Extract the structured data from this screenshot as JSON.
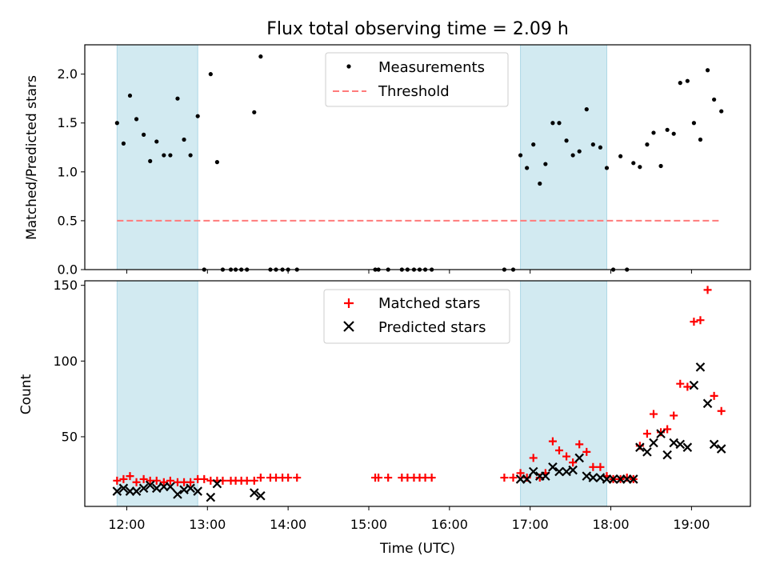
{
  "chart_data": {
    "type": "scatter",
    "title": "Flux total observing time = 2.09 h",
    "xlabel": "Time (UTC)",
    "xticks": [
      {
        "hour": 12,
        "label": "12:00"
      },
      {
        "hour": 13,
        "label": "13:00"
      },
      {
        "hour": 14,
        "label": "14:00"
      },
      {
        "hour": 15,
        "label": "15:00"
      },
      {
        "hour": 16,
        "label": "16:00"
      },
      {
        "hour": 17,
        "label": "17:00"
      },
      {
        "hour": 18,
        "label": "18:00"
      },
      {
        "hour": 19,
        "label": "19:00"
      }
    ],
    "xlim_hours": [
      11.48,
      19.73
    ],
    "shaded_intervals_hours": [
      [
        11.88,
        12.88
      ],
      [
        16.88,
        17.95
      ]
    ],
    "shade_color": "#add8e6",
    "panels": [
      {
        "id": "ratio",
        "ylabel": "Matched/Predicted stars",
        "ylim": [
          0,
          2.3
        ],
        "yticks": [
          {
            "v": 0.0,
            "label": "0.0"
          },
          {
            "v": 0.5,
            "label": "0.5"
          },
          {
            "v": 1.0,
            "label": "1.0"
          },
          {
            "v": 1.5,
            "label": "1.5"
          },
          {
            "v": 2.0,
            "label": "2.0"
          }
        ],
        "legend": {
          "position": "upper center"
        },
        "series": [
          {
            "name": "Measurements",
            "marker": "dot",
            "color": "#000000",
            "points": [
              [
                11.88,
                1.5
              ],
              [
                11.96,
                1.29
              ],
              [
                12.04,
                1.78
              ],
              [
                12.12,
                1.54
              ],
              [
                12.21,
                1.38
              ],
              [
                12.29,
                1.11
              ],
              [
                12.37,
                1.31
              ],
              [
                12.46,
                1.17
              ],
              [
                12.54,
                1.17
              ],
              [
                12.63,
                1.75
              ],
              [
                12.71,
                1.33
              ],
              [
                12.79,
                1.17
              ],
              [
                12.88,
                1.57
              ],
              [
                12.96,
                0
              ],
              [
                13.04,
                2.0
              ],
              [
                13.12,
                1.1
              ],
              [
                13.19,
                0
              ],
              [
                13.29,
                0
              ],
              [
                13.35,
                0
              ],
              [
                13.42,
                0
              ],
              [
                13.49,
                0
              ],
              [
                13.58,
                1.61
              ],
              [
                13.66,
                2.18
              ],
              [
                13.78,
                0
              ],
              [
                13.85,
                0
              ],
              [
                13.93,
                0
              ],
              [
                14.0,
                0
              ],
              [
                14.11,
                0
              ],
              [
                15.08,
                0
              ],
              [
                15.12,
                0
              ],
              [
                15.24,
                0
              ],
              [
                15.41,
                0
              ],
              [
                15.48,
                0
              ],
              [
                15.56,
                0
              ],
              [
                15.63,
                0
              ],
              [
                15.7,
                0
              ],
              [
                15.78,
                0
              ],
              [
                16.68,
                0
              ],
              [
                16.79,
                0
              ],
              [
                16.88,
                1.17
              ],
              [
                16.96,
                1.04
              ],
              [
                17.04,
                1.28
              ],
              [
                17.12,
                0.88
              ],
              [
                17.19,
                1.08
              ],
              [
                17.28,
                1.5
              ],
              [
                17.36,
                1.5
              ],
              [
                17.45,
                1.32
              ],
              [
                17.53,
                1.17
              ],
              [
                17.61,
                1.21
              ],
              [
                17.7,
                1.64
              ],
              [
                17.78,
                1.28
              ],
              [
                17.87,
                1.25
              ],
              [
                17.95,
                1.04
              ],
              [
                18.03,
                0
              ],
              [
                18.12,
                1.16
              ],
              [
                18.2,
                0
              ],
              [
                18.28,
                1.09
              ],
              [
                18.36,
                1.05
              ],
              [
                18.45,
                1.28
              ],
              [
                18.53,
                1.4
              ],
              [
                18.62,
                1.06
              ],
              [
                18.7,
                1.43
              ],
              [
                18.78,
                1.39
              ],
              [
                18.86,
                1.91
              ],
              [
                18.95,
                1.93
              ],
              [
                19.03,
                1.5
              ],
              [
                19.11,
                1.33
              ],
              [
                19.2,
                2.04
              ],
              [
                19.28,
                1.74
              ],
              [
                19.37,
                1.62
              ]
            ]
          },
          {
            "name": "Threshold",
            "marker": "dashed-line",
            "color": "#ff7b7b",
            "points": [
              [
                11.88,
                0.5
              ],
              [
                19.37,
                0.5
              ]
            ]
          }
        ]
      },
      {
        "id": "counts",
        "ylabel": "Count",
        "ylim": [
          4,
          153
        ],
        "yticks": [
          {
            "v": 50,
            "label": "50"
          },
          {
            "v": 100,
            "label": "100"
          },
          {
            "v": 150,
            "label": "150"
          }
        ],
        "legend": {
          "position": "upper center"
        },
        "series": [
          {
            "name": "Matched stars",
            "marker": "plus",
            "color": "#ff0000",
            "points": [
              [
                11.88,
                21
              ],
              [
                11.96,
                22
              ],
              [
                12.04,
                24
              ],
              [
                12.12,
                20
              ],
              [
                12.21,
                22
              ],
              [
                12.29,
                21
              ],
              [
                12.37,
                21
              ],
              [
                12.46,
                20
              ],
              [
                12.54,
                21
              ],
              [
                12.63,
                20
              ],
              [
                12.71,
                20
              ],
              [
                12.79,
                20
              ],
              [
                12.88,
                22
              ],
              [
                12.96,
                22
              ],
              [
                13.04,
                21
              ],
              [
                13.12,
                21
              ],
              [
                13.19,
                21
              ],
              [
                13.29,
                21
              ],
              [
                13.35,
                21
              ],
              [
                13.42,
                21
              ],
              [
                13.49,
                21
              ],
              [
                13.58,
                21
              ],
              [
                13.66,
                23
              ],
              [
                13.78,
                23
              ],
              [
                13.85,
                23
              ],
              [
                13.93,
                23
              ],
              [
                14.0,
                23
              ],
              [
                14.11,
                23
              ],
              [
                15.08,
                23
              ],
              [
                15.12,
                23
              ],
              [
                15.24,
                23
              ],
              [
                15.41,
                23
              ],
              [
                15.48,
                23
              ],
              [
                15.56,
                23
              ],
              [
                15.63,
                23
              ],
              [
                15.7,
                23
              ],
              [
                15.78,
                23
              ],
              [
                16.68,
                23
              ],
              [
                16.79,
                23
              ],
              [
                16.88,
                26
              ],
              [
                16.96,
                23
              ],
              [
                17.04,
                36
              ],
              [
                17.12,
                23
              ],
              [
                17.19,
                26
              ],
              [
                17.28,
                47
              ],
              [
                17.36,
                41
              ],
              [
                17.45,
                37
              ],
              [
                17.53,
                33
              ],
              [
                17.61,
                45
              ],
              [
                17.7,
                40
              ],
              [
                17.78,
                30
              ],
              [
                17.87,
                30
              ],
              [
                17.95,
                24
              ],
              [
                18.03,
                22
              ],
              [
                18.12,
                22
              ],
              [
                18.2,
                23
              ],
              [
                18.28,
                22
              ],
              [
                18.36,
                44
              ],
              [
                18.45,
                52
              ],
              [
                18.53,
                65
              ],
              [
                18.62,
                53
              ],
              [
                18.7,
                55
              ],
              [
                18.78,
                64
              ],
              [
                18.86,
                85
              ],
              [
                18.95,
                83
              ],
              [
                19.03,
                126
              ],
              [
                19.11,
                127
              ],
              [
                19.2,
                147
              ],
              [
                19.28,
                77
              ],
              [
                19.37,
                67
              ]
            ]
          },
          {
            "name": "Predicted stars",
            "marker": "x",
            "color": "#000000",
            "points": [
              [
                11.88,
                14
              ],
              [
                11.96,
                16
              ],
              [
                12.04,
                14
              ],
              [
                12.12,
                14
              ],
              [
                12.21,
                16
              ],
              [
                12.29,
                18
              ],
              [
                12.37,
                16
              ],
              [
                12.46,
                17
              ],
              [
                12.54,
                17
              ],
              [
                12.63,
                12
              ],
              [
                12.71,
                15
              ],
              [
                12.79,
                16
              ],
              [
                12.88,
                14
              ],
              [
                13.04,
                10
              ],
              [
                13.12,
                19
              ],
              [
                13.58,
                13
              ],
              [
                13.66,
                11
              ],
              [
                16.88,
                22
              ],
              [
                16.96,
                22
              ],
              [
                17.04,
                27
              ],
              [
                17.12,
                24
              ],
              [
                17.19,
                24
              ],
              [
                17.28,
                30
              ],
              [
                17.36,
                27
              ],
              [
                17.45,
                27
              ],
              [
                17.53,
                28
              ],
              [
                17.61,
                36
              ],
              [
                17.7,
                24
              ],
              [
                17.78,
                23
              ],
              [
                17.87,
                23
              ],
              [
                17.95,
                22
              ],
              [
                18.03,
                22
              ],
              [
                18.12,
                22
              ],
              [
                18.2,
                22
              ],
              [
                18.28,
                22
              ],
              [
                18.36,
                43
              ],
              [
                18.45,
                40
              ],
              [
                18.53,
                46
              ],
              [
                18.62,
                52
              ],
              [
                18.7,
                38
              ],
              [
                18.78,
                46
              ],
              [
                18.86,
                45
              ],
              [
                18.95,
                43
              ],
              [
                19.03,
                84
              ],
              [
                19.11,
                96
              ],
              [
                19.2,
                72
              ],
              [
                19.28,
                45
              ],
              [
                19.37,
                42
              ]
            ]
          }
        ]
      }
    ]
  }
}
